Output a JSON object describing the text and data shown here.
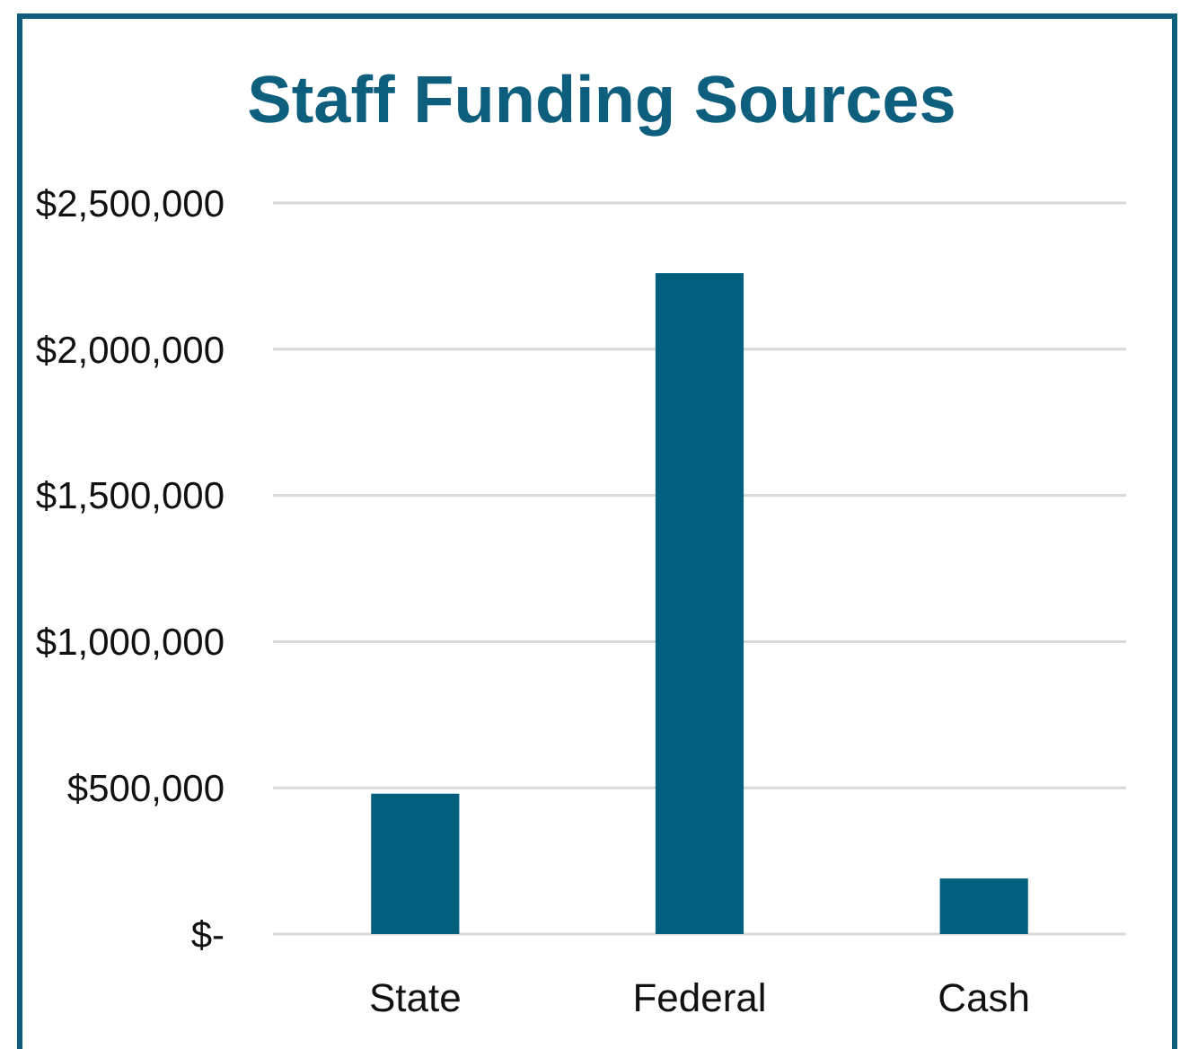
{
  "chart_data": {
    "type": "bar",
    "title": "Staff Funding Sources",
    "categories": [
      "State",
      "Federal",
      "Cash"
    ],
    "values": [
      480000,
      2260000,
      190000
    ],
    "color": "#02607e",
    "ylim": [
      0,
      2500000
    ],
    "yticks": [
      {
        "value": 0,
        "label": "$-"
      },
      {
        "value": 500000,
        "label": "$500,000"
      },
      {
        "value": 1000000,
        "label": "$1,000,000"
      },
      {
        "value": 1500000,
        "label": "$1,500,000"
      },
      {
        "value": 2000000,
        "label": "$2,000,000"
      },
      {
        "value": 2500000,
        "label": "$2,500,000"
      }
    ],
    "grid": true
  }
}
